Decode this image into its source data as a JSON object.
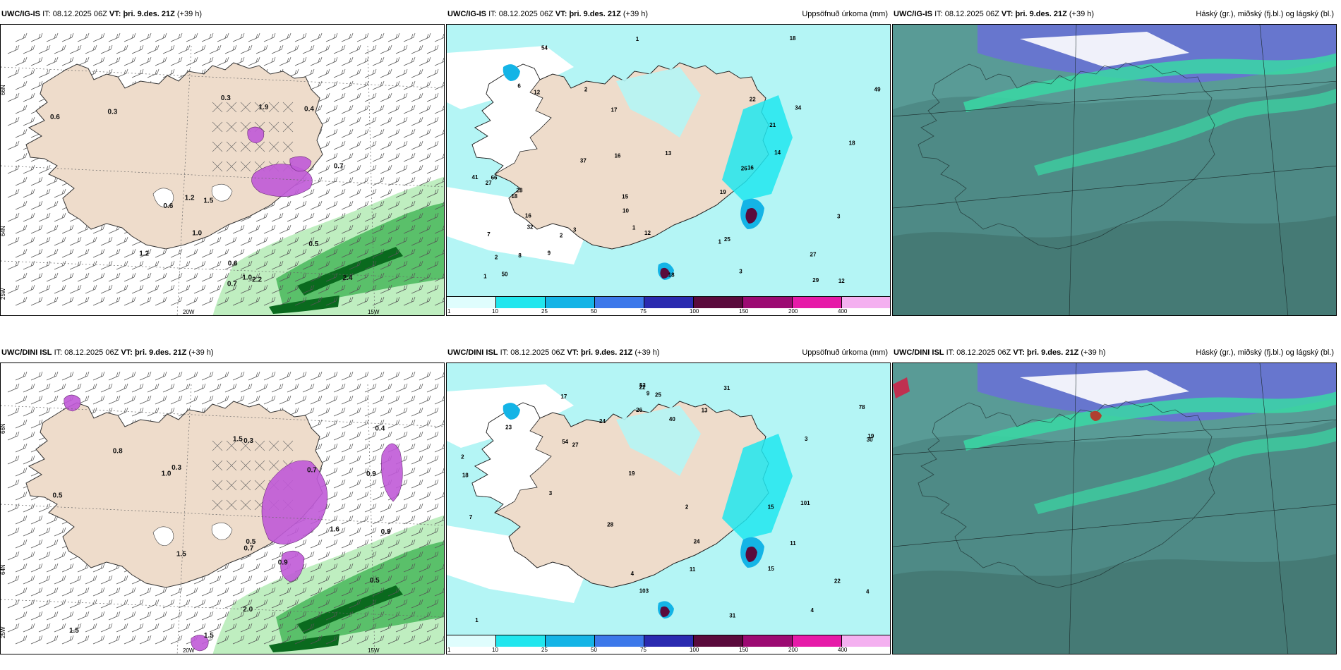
{
  "rows": [
    {
      "model": "UWC/IG-IS",
      "it_prefix": "IT:",
      "it": "08.12.2025 06Z",
      "vt_prefix": "VT:",
      "vt": "þri. 9.des. 21Z",
      "lead": "(+39 h)",
      "precip_labels": [
        "0.3",
        "0.4",
        "1.0",
        "1.5",
        "1.2",
        "0.7",
        "0.5",
        "0.3",
        "0.6",
        "0.7",
        "0.6",
        "2.2",
        "1.9",
        "1.2",
        "2.4",
        "0.6",
        "1.0"
      ],
      "accum_labels": [
        "3",
        "1",
        "2",
        "3",
        "1",
        "12",
        "16",
        "18",
        "29",
        "27",
        "37",
        "21",
        "25",
        "28",
        "7",
        "9",
        "13",
        "12",
        "32",
        "41",
        "6",
        "19",
        "18",
        "54",
        "12",
        "50",
        "49",
        "66",
        "34",
        "15",
        "14",
        "27",
        "18",
        "16",
        "10",
        "22",
        "18",
        "8",
        "26",
        "17",
        "16",
        "3",
        "2",
        "1",
        "2",
        "1"
      ]
    },
    {
      "model": "UWC/DINI ISL",
      "it_prefix": "IT:",
      "it": "08.12.2025 06Z",
      "vt_prefix": "VT:",
      "vt": "þri. 9.des. 21Z",
      "lead": "(+39 h)",
      "precip_labels": [
        "0.5",
        "1.5",
        "0.3",
        "1.0",
        "0.4",
        "1.5",
        "0.7",
        "2.0",
        "0.5",
        "0.3",
        "1.5",
        "0.9",
        "1.6",
        "0.8",
        "0.7",
        "0.9",
        "0.9",
        "1.5",
        "0.5"
      ],
      "accum_labels": [
        "3",
        "3",
        "2",
        "1",
        "23",
        "27",
        "30",
        "22",
        "18",
        "40",
        "13",
        "15",
        "31",
        "7",
        "26",
        "28",
        "54",
        "25",
        "24",
        "22",
        "101",
        "103",
        "78",
        "53",
        "11",
        "9",
        "4",
        "4",
        "11",
        "24",
        "17",
        "19",
        "19",
        "2",
        "4",
        "31",
        "15"
      ]
    }
  ],
  "precip_title": "Uppsöfnuð úrkoma (mm)",
  "cloud_title": "Háský (gr.), miðský (fj.bl.) og lágský (bl.)",
  "lon_labels": [
    "20W",
    "15W"
  ],
  "lat_labels": [
    "66N",
    "64N",
    "25W"
  ],
  "colorbar": {
    "ticks": [
      "1",
      "10",
      "25",
      "50",
      "75",
      "100",
      "150",
      "200",
      "400"
    ],
    "colors": [
      "#dffdfd",
      "#20e6ee",
      "#14b4e6",
      "#3c78ea",
      "#2a2ab0",
      "#5a0a3c",
      "#9c0a72",
      "#e61aa8",
      "#f4b0f0"
    ]
  },
  "colors": {
    "land": "#eedccb",
    "sea_light": "#b4f5f5",
    "green_light": "#bfeec0",
    "green_mid": "#5ac06a",
    "green_dark": "#0a6a1e",
    "purple": "#c05ad8",
    "cloud_base": "#4e8a86",
    "cloud_teal": "#3ad8a4",
    "cloud_blue": "#6a70d8"
  }
}
